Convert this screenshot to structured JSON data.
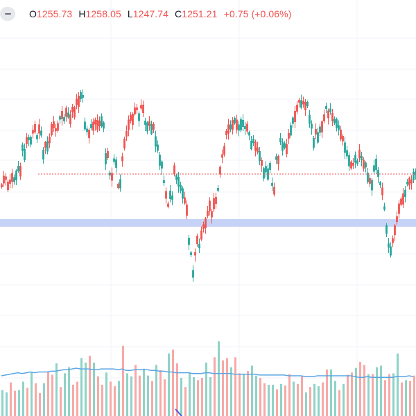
{
  "legend": {
    "collapse_icon": "minus-icon",
    "open_label": "O",
    "open_value": "1255.73",
    "high_label": "H",
    "high_value": "1258.05",
    "low_label": "L",
    "low_value": "1247.74",
    "close_label": "C",
    "close_value": "1251.21",
    "change": "+0.75 (+0.06%)"
  },
  "colors": {
    "up": "#26a69a",
    "down": "#ef5350",
    "up_volume": "#8fd3c6",
    "down_volume": "#f7a9a7",
    "grid": "#f0f3fa",
    "volume_ma": "#5ba6e3",
    "zone": "#c6d3f7",
    "price_line": "#ef5350",
    "drawing": "#4a5ee0"
  },
  "chart_data": {
    "type": "candlestick",
    "candles": [
      [
        5,
        268
      ],
      [
        5,
        259
      ],
      [
        5,
        257
      ],
      [
        4,
        268
      ],
      [
        5,
        262
      ],
      [
        0,
        256
      ],
      [
        1,
        259
      ],
      [
        1,
        253
      ],
      [
        1,
        243
      ],
      [
        0,
        247
      ],
      [
        1,
        213
      ],
      [
        1,
        223
      ],
      [
        0,
        203
      ],
      [
        1,
        200
      ],
      [
        1,
        203
      ],
      [
        0,
        190
      ],
      [
        0,
        185
      ],
      [
        1,
        198
      ],
      [
        0,
        186
      ],
      [
        1,
        192
      ],
      [
        1,
        223
      ],
      [
        0,
        209
      ],
      [
        1,
        211
      ],
      [
        0,
        202
      ],
      [
        0,
        187
      ],
      [
        0,
        180
      ],
      [
        0,
        187
      ],
      [
        0,
        183
      ],
      [
        1,
        170
      ],
      [
        0,
        166
      ],
      [
        1,
        172
      ],
      [
        0,
        162
      ],
      [
        1,
        166
      ],
      [
        0,
        172
      ],
      [
        0,
        158
      ],
      [
        0,
        162
      ],
      [
        0,
        147
      ],
      [
        0,
        146
      ],
      [
        1,
        138
      ],
      [
        1,
        139
      ],
      [
        1,
        181
      ],
      [
        1,
        188
      ],
      [
        0,
        193
      ],
      [
        1,
        182
      ],
      [
        0,
        182
      ],
      [
        0,
        176
      ],
      [
        0,
        180
      ],
      [
        0,
        178
      ],
      [
        1,
        175
      ],
      [
        1,
        181
      ],
      [
        1,
        229
      ],
      [
        0,
        223
      ],
      [
        1,
        251
      ],
      [
        0,
        255
      ],
      [
        1,
        231
      ],
      [
        1,
        236
      ],
      [
        0,
        268
      ],
      [
        1,
        265
      ],
      [
        0,
        229
      ],
      [
        0,
        207
      ],
      [
        0,
        193
      ],
      [
        0,
        180
      ],
      [
        0,
        170
      ],
      [
        0,
        172
      ],
      [
        0,
        160
      ],
      [
        0,
        157
      ],
      [
        1,
        169
      ],
      [
        0,
        154
      ],
      [
        0,
        157
      ],
      [
        1,
        177
      ],
      [
        1,
        183
      ],
      [
        0,
        178
      ],
      [
        1,
        186
      ],
      [
        0,
        183
      ],
      [
        1,
        204
      ],
      [
        1,
        213
      ],
      [
        1,
        231
      ],
      [
        1,
        238
      ],
      [
        1,
        262
      ],
      [
        0,
        281
      ],
      [
        0,
        296
      ],
      [
        1,
        281
      ],
      [
        1,
        285
      ],
      [
        0,
        245
      ],
      [
        1,
        256
      ],
      [
        1,
        262
      ],
      [
        1,
        271
      ],
      [
        1,
        279
      ],
      [
        0,
        289
      ],
      [
        0,
        303
      ],
      [
        1,
        348
      ],
      [
        1,
        366
      ],
      [
        1,
        395
      ],
      [
        0,
        366
      ],
      [
        0,
        346
      ],
      [
        1,
        355
      ],
      [
        0,
        339
      ],
      [
        0,
        327
      ],
      [
        0,
        322
      ],
      [
        0,
        308
      ],
      [
        0,
        297
      ],
      [
        0,
        309
      ],
      [
        0,
        294
      ],
      [
        0,
        289
      ],
      [
        1,
        273
      ],
      [
        0,
        246
      ],
      [
        0,
        225
      ],
      [
        0,
        217
      ],
      [
        0,
        192
      ],
      [
        0,
        186
      ],
      [
        1,
        183
      ],
      [
        0,
        180
      ],
      [
        1,
        174
      ],
      [
        0,
        180
      ],
      [
        1,
        184
      ],
      [
        1,
        180
      ],
      [
        1,
        178
      ],
      [
        1,
        184
      ],
      [
        0,
        184
      ],
      [
        1,
        193
      ],
      [
        1,
        209
      ],
      [
        1,
        203
      ],
      [
        0,
        211
      ],
      [
        0,
        216
      ],
      [
        1,
        225
      ],
      [
        0,
        235
      ],
      [
        1,
        250
      ],
      [
        1,
        244
      ],
      [
        1,
        251
      ],
      [
        1,
        240
      ],
      [
        1,
        266
      ],
      [
        0,
        275
      ],
      [
        1,
        228
      ],
      [
        0,
        231
      ],
      [
        1,
        202
      ],
      [
        1,
        211
      ],
      [
        1,
        210
      ],
      [
        0,
        215
      ],
      [
        0,
        196
      ],
      [
        1,
        188
      ],
      [
        1,
        174
      ],
      [
        0,
        168
      ],
      [
        0,
        156
      ],
      [
        0,
        146
      ],
      [
        1,
        150
      ],
      [
        0,
        148
      ],
      [
        0,
        153
      ],
      [
        1,
        150
      ],
      [
        1,
        172
      ],
      [
        1,
        182
      ],
      [
        1,
        206
      ],
      [
        0,
        190
      ],
      [
        1,
        198
      ],
      [
        1,
        187
      ],
      [
        0,
        183
      ],
      [
        0,
        170
      ],
      [
        1,
        155
      ],
      [
        0,
        165
      ],
      [
        1,
        159
      ],
      [
        0,
        169
      ],
      [
        1,
        175
      ],
      [
        1,
        178
      ],
      [
        1,
        184
      ],
      [
        0,
        194
      ],
      [
        0,
        200
      ],
      [
        1,
        213
      ],
      [
        1,
        221
      ],
      [
        1,
        232
      ],
      [
        0,
        238
      ],
      [
        0,
        237
      ],
      [
        1,
        229
      ],
      [
        1,
        234
      ],
      [
        0,
        222
      ],
      [
        1,
        228
      ],
      [
        0,
        237
      ],
      [
        1,
        238
      ],
      [
        1,
        256
      ],
      [
        0,
        261
      ],
      [
        1,
        267
      ],
      [
        1,
        243
      ],
      [
        1,
        237
      ],
      [
        1,
        250
      ],
      [
        1,
        265
      ],
      [
        0,
        276
      ],
      [
        1,
        300
      ],
      [
        1,
        331
      ],
      [
        1,
        354
      ],
      [
        1,
        362
      ],
      [
        0,
        347
      ],
      [
        0,
        332
      ],
      [
        0,
        316
      ],
      [
        0,
        301
      ],
      [
        0,
        291
      ],
      [
        0,
        287
      ],
      [
        1,
        279
      ],
      [
        1,
        264
      ],
      [
        0,
        262
      ],
      [
        0,
        262
      ],
      [
        1,
        254
      ],
      [
        1,
        249
      ]
    ],
    "volumes": [
      [
        0,
        8,
        34
      ],
      [
        1,
        9,
        31
      ],
      [
        2,
        10,
        44
      ],
      [
        3,
        11,
        33
      ],
      [
        4,
        12,
        34
      ],
      [
        5,
        11,
        45
      ],
      [
        6,
        12,
        37
      ],
      [
        7,
        13,
        57
      ],
      [
        8,
        12,
        43
      ],
      [
        9,
        13,
        30
      ],
      [
        10,
        13,
        43
      ],
      [
        11,
        13,
        58
      ],
      [
        12,
        14,
        54
      ],
      [
        13,
        14,
        69
      ],
      [
        14,
        15,
        38
      ],
      [
        15,
        16,
        56
      ],
      [
        16,
        16,
        64
      ],
      [
        17,
        17,
        41
      ],
      [
        18,
        18,
        45
      ],
      [
        19,
        17,
        76
      ],
      [
        20,
        17,
        70
      ],
      [
        21,
        17,
        79
      ],
      [
        22,
        16,
        70
      ],
      [
        23,
        16,
        52
      ],
      [
        24,
        17,
        41
      ],
      [
        25,
        17,
        57
      ],
      [
        26,
        17,
        45
      ],
      [
        27,
        17,
        39
      ],
      [
        28,
        16,
        46
      ],
      [
        29,
        17,
        92
      ],
      [
        30,
        15,
        56
      ],
      [
        31,
        15,
        52
      ],
      [
        32,
        16,
        67
      ],
      [
        33,
        16,
        53
      ],
      [
        34,
        16,
        62
      ],
      [
        35,
        16,
        53
      ],
      [
        36,
        15,
        46
      ],
      [
        37,
        15,
        67
      ],
      [
        38,
        14,
        60
      ],
      [
        39,
        14,
        48
      ],
      [
        40,
        13,
        82
      ],
      [
        41,
        13,
        87
      ],
      [
        42,
        12,
        69
      ],
      [
        43,
        12,
        50
      ],
      [
        44,
        12,
        38
      ],
      [
        45,
        12,
        56
      ],
      [
        46,
        11,
        51
      ],
      [
        47,
        11,
        47
      ],
      [
        48,
        11,
        50
      ],
      [
        49,
        12,
        70
      ],
      [
        50,
        12,
        51
      ],
      [
        51,
        11,
        77
      ],
      [
        52,
        11,
        98
      ],
      [
        53,
        11,
        73
      ],
      [
        54,
        11,
        76
      ],
      [
        55,
        11,
        64
      ],
      [
        56,
        10,
        77
      ],
      [
        57,
        10,
        56
      ],
      [
        58,
        10,
        55
      ],
      [
        59,
        10,
        59
      ],
      [
        60,
        10,
        66
      ],
      [
        61,
        10,
        53
      ],
      [
        62,
        9,
        50
      ],
      [
        63,
        9,
        43
      ],
      [
        64,
        9,
        41
      ],
      [
        65,
        9,
        41
      ],
      [
        66,
        9,
        35
      ],
      [
        67,
        9,
        42
      ],
      [
        68,
        9,
        40
      ],
      [
        69,
        8,
        55
      ],
      [
        70,
        8,
        45
      ],
      [
        71,
        8,
        42
      ],
      [
        72,
        8,
        52
      ],
      [
        73,
        7,
        31
      ],
      [
        74,
        7,
        38
      ],
      [
        75,
        7,
        42
      ],
      [
        76,
        8,
        39
      ],
      [
        77,
        8,
        44
      ],
      [
        78,
        8,
        61
      ],
      [
        79,
        8,
        61
      ],
      [
        80,
        8,
        46
      ],
      [
        81,
        8,
        34
      ],
      [
        82,
        8,
        42
      ],
      [
        83,
        8,
        54
      ],
      [
        84,
        8,
        57
      ],
      [
        85,
        7,
        63
      ],
      [
        86,
        6,
        71
      ],
      [
        87,
        6,
        67
      ],
      [
        88,
        7,
        55
      ],
      [
        89,
        6,
        55
      ],
      [
        90,
        6,
        64
      ],
      [
        91,
        6,
        66
      ],
      [
        92,
        6,
        47
      ],
      [
        93,
        6,
        55
      ],
      [
        94,
        6,
        56
      ],
      [
        95,
        7,
        82
      ],
      [
        96,
        7,
        44
      ],
      [
        97,
        7,
        47
      ],
      [
        98,
        8,
        46
      ],
      [
        99,
        7,
        53
      ]
    ]
  }
}
